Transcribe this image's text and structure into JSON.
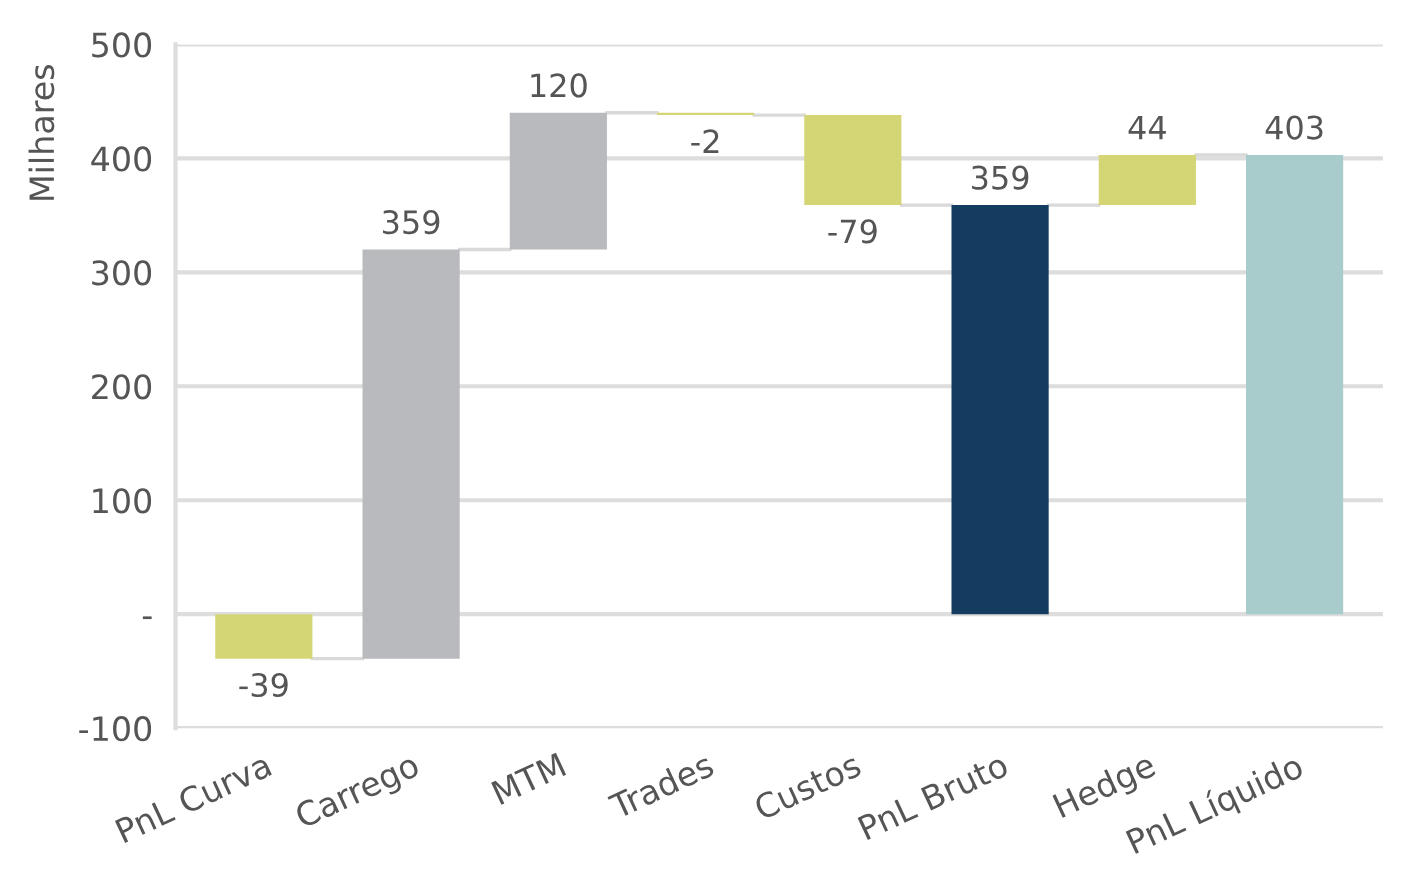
{
  "chart_data": {
    "type": "bar",
    "ylabel": "Milhares",
    "categories": [
      "PnL Curva",
      "Carrego",
      "MTM",
      "Trades",
      "Custos",
      "PnL Bruto",
      "Hedge",
      "PnL Líquido"
    ],
    "values": [
      -39,
      359,
      120,
      -2,
      -79,
      359,
      44,
      403
    ],
    "base": [
      0,
      -39,
      320,
      440,
      438,
      0,
      359,
      0
    ],
    "colors": [
      "#d4d574",
      "#b9babd",
      "#b9babd",
      "#d4d574",
      "#d4d574",
      "#143c61",
      "#d4d574",
      "#a8cbcb"
    ],
    "ylim": [
      -100,
      500
    ],
    "yticks": [
      {
        "value": -100,
        "label": "-100"
      },
      {
        "value": 0,
        "label": "-"
      },
      100,
      200,
      300,
      400,
      500
    ],
    "grid": "y",
    "data_labels": true
  }
}
